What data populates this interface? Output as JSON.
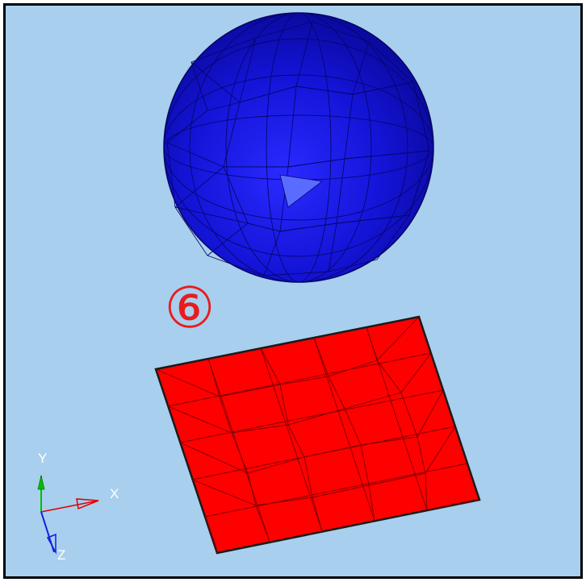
{
  "viewport": {
    "background_color": "#a8cfee",
    "step_marker": "⑥",
    "step_marker_color": "#e81c1c"
  },
  "objects": {
    "sphere": {
      "color": "#1010d0",
      "edge_color": "#050560"
    },
    "plate": {
      "color": "#ff0000",
      "edge_color": "#1a1a1a"
    }
  },
  "triad": {
    "x_label": "X",
    "y_label": "Y",
    "z_label": "Z",
    "x_color": "#e00000",
    "y_color": "#00c000",
    "z_color": "#1020e0"
  }
}
